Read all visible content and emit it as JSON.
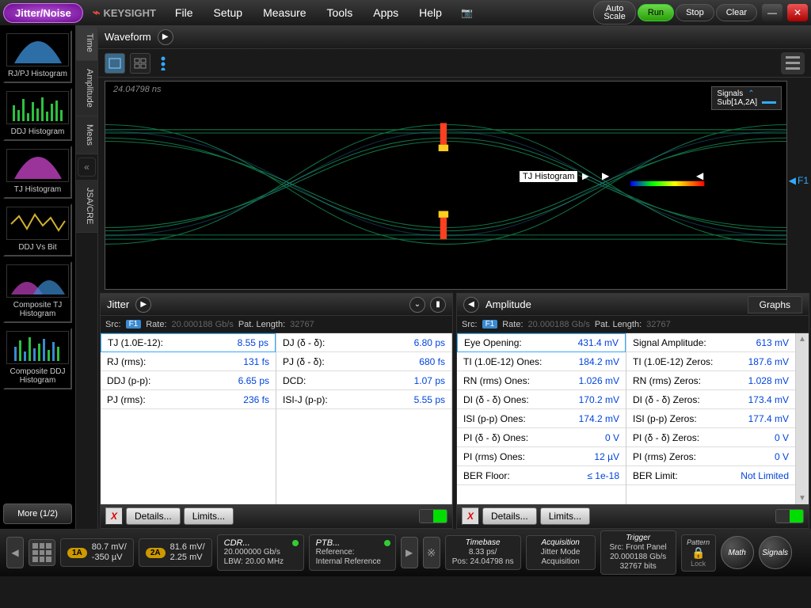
{
  "theme": {
    "bg": "#1a1a1a",
    "accent": "#3a8ad0",
    "value_color": "#0044dd",
    "run_color": "#2a9e0a"
  },
  "topbar": {
    "mode_badge": "Jitter/Noise",
    "brand": "KEYSIGHT",
    "menu": [
      "File",
      "Setup",
      "Measure",
      "Tools",
      "Apps",
      "Help"
    ],
    "buttons": {
      "autoscale": "Auto Scale",
      "run": "Run",
      "stop": "Stop",
      "clear": "Clear"
    }
  },
  "sidebar_thumbs": [
    {
      "label": "RJ/PJ Histogram",
      "type": "gauss",
      "color": "#3a8ad0"
    },
    {
      "label": "DDJ Histogram",
      "type": "bars",
      "color": "#2ec040"
    },
    {
      "label": "TJ Histogram",
      "type": "gauss",
      "color": "#c040c0"
    },
    {
      "label": "DDJ Vs Bit",
      "type": "line",
      "color": "#d0b030"
    },
    {
      "label": "Composite TJ Histogram",
      "type": "gausses",
      "color": "#c040c0"
    },
    {
      "label": "Composite DDJ Histogram",
      "type": "bars2",
      "color": "#3a8ad0"
    }
  ],
  "more_button": "More (1/2)",
  "side_tabs": [
    "Time",
    "Amplitude",
    "Meas",
    "JSA/CRE"
  ],
  "waveform": {
    "title": "Waveform",
    "timestamp": "24.04798 ns",
    "legend_title": "Signals",
    "legend_signal": "Sub[1A,2A]",
    "marker_label": "TJ Histogram",
    "f1_label": "F1",
    "eye": {
      "trace_color": "#20d080",
      "overlay_color": "#3a8ad0"
    }
  },
  "jitter_panel": {
    "title": "Jitter",
    "src_label": "Src:",
    "src_value": "F1",
    "rate_label": "Rate:",
    "rate_value": "20.000188 Gb/s",
    "pat_label": "Pat. Length:",
    "pat_value": "32767",
    "col1": [
      {
        "k": "TJ (1.0E-12):",
        "v": "8.55 ps"
      },
      {
        "k": "RJ (rms):",
        "v": "131 fs"
      },
      {
        "k": "DDJ (p-p):",
        "v": "6.65 ps"
      },
      {
        "k": "PJ (rms):",
        "v": "236 fs"
      }
    ],
    "col2": [
      {
        "k": "DJ (δ - δ):",
        "v": "6.80 ps"
      },
      {
        "k": "PJ (δ - δ):",
        "v": "680 fs"
      },
      {
        "k": "DCD:",
        "v": "1.07 ps"
      },
      {
        "k": "ISI-J (p-p):",
        "v": "5.55 ps"
      }
    ],
    "footer": {
      "details": "Details...",
      "limits": "Limits..."
    }
  },
  "amplitude_panel": {
    "title": "Amplitude",
    "graphs_tab": "Graphs",
    "src_label": "Src:",
    "src_value": "F1",
    "rate_label": "Rate:",
    "rate_value": "20.000188 Gb/s",
    "pat_label": "Pat. Length:",
    "pat_value": "32767",
    "col1": [
      {
        "k": "Eye Opening:",
        "v": "431.4 mV"
      },
      {
        "k": "TI (1.0E-12) Ones:",
        "v": "184.2 mV"
      },
      {
        "k": "RN (rms) Ones:",
        "v": "1.026 mV"
      },
      {
        "k": "DI (δ - δ) Ones:",
        "v": "170.2 mV"
      },
      {
        "k": "ISI (p-p) Ones:",
        "v": "174.2 mV"
      },
      {
        "k": "PI (δ - δ) Ones:",
        "v": "0 V"
      },
      {
        "k": "PI (rms) Ones:",
        "v": "12 µV"
      },
      {
        "k": "BER Floor:",
        "v": "≤ 1e-18"
      }
    ],
    "col2": [
      {
        "k": "Signal Amplitude:",
        "v": "613 mV"
      },
      {
        "k": "TI (1.0E-12) Zeros:",
        "v": "187.6 mV"
      },
      {
        "k": "RN (rms) Zeros:",
        "v": "1.028 mV"
      },
      {
        "k": "DI (δ - δ) Zeros:",
        "v": "173.4 mV"
      },
      {
        "k": "ISI (p-p) Zeros:",
        "v": "177.4 mV"
      },
      {
        "k": "PI (δ - δ) Zeros:",
        "v": "0 V"
      },
      {
        "k": "PI (rms) Zeros:",
        "v": "0 V"
      },
      {
        "k": "BER Limit:",
        "v": "Not Limited"
      }
    ],
    "footer": {
      "details": "Details...",
      "limits": "Limits..."
    }
  },
  "bottom": {
    "ch1": {
      "chip": "1A",
      "l1": "80.7 mV/",
      "l2": "-350 µV"
    },
    "ch2": {
      "chip": "2A",
      "l1": "81.6 mV/",
      "l2": "2.25 mV"
    },
    "cdr": {
      "title": "CDR...",
      "l1": "20.000000 Gb/s",
      "l2": "LBW: 20.00 MHz",
      "dot": "#3c3"
    },
    "ptb": {
      "title": "PTB...",
      "l1": "Reference:",
      "l2": "Internal Reference",
      "dot": "#3c3"
    },
    "timebase": {
      "title": "Timebase",
      "l1": "8.33 ps/",
      "l2": "Pos: 24.04798 ns"
    },
    "acquisition": {
      "title": "Acquisition",
      "l1": "Jitter Mode",
      "l2": "Acquisition"
    },
    "trigger": {
      "title": "Trigger",
      "l1": "Src: Front Panel",
      "l2": "20.000188 Gb/s",
      "l3": "32767 bits"
    },
    "pattern": {
      "title": "Pattern",
      "lock": "Lock"
    },
    "math": "Math",
    "signals": "Signals"
  }
}
